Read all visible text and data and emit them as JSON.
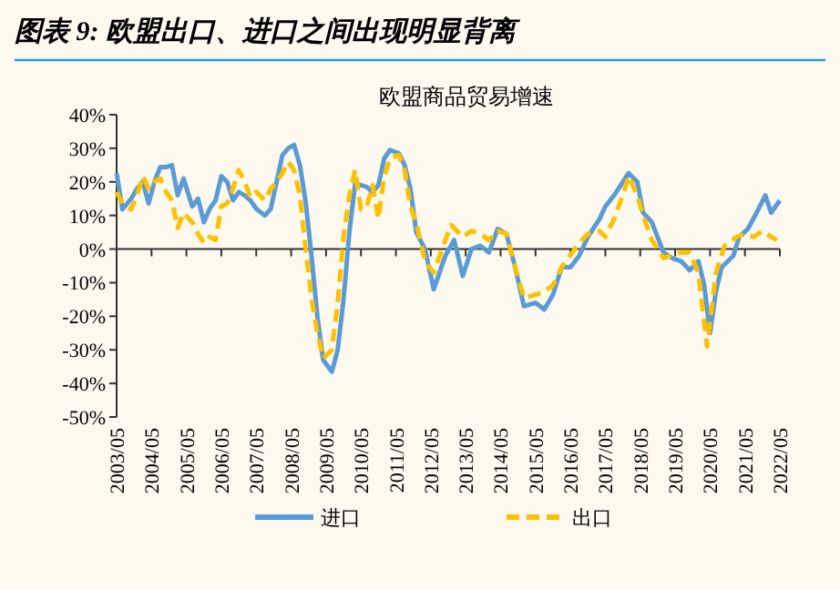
{
  "chart_data": {
    "type": "line",
    "title": "图表 9: 欧盟出口、进口之间出现明显背离",
    "subtitle": "欧盟商品贸易增速",
    "legend": "bottom",
    "xlim": [
      "2003-05",
      "2022-05"
    ],
    "xticks": [
      {
        "value": "2003-05",
        "label": "2003/05"
      },
      {
        "value": "2004-05",
        "label": "2004/05"
      },
      {
        "value": "2005-05",
        "label": "2005/05"
      },
      {
        "value": "2006-05",
        "label": "2006/05"
      },
      {
        "value": "2007-05",
        "label": "2007/05"
      },
      {
        "value": "2008-05",
        "label": "2008/05"
      },
      {
        "value": "2009-05",
        "label": "2009/05"
      },
      {
        "value": "2010-05",
        "label": "2010/05"
      },
      {
        "value": "2011-05",
        "label": "2011/05"
      },
      {
        "value": "2012-05",
        "label": "2012/05"
      },
      {
        "value": "2013-05",
        "label": "2013/05"
      },
      {
        "value": "2014-05",
        "label": "2014/05"
      },
      {
        "value": "2015-05",
        "label": "2015/05"
      },
      {
        "value": "2016-05",
        "label": "2016/05"
      },
      {
        "value": "2017-05",
        "label": "2017/05"
      },
      {
        "value": "2018-05",
        "label": "2018/05"
      },
      {
        "value": "2019-05",
        "label": "2019/05"
      },
      {
        "value": "2020-05",
        "label": "2020/05"
      },
      {
        "value": "2021-05",
        "label": "2021/05"
      },
      {
        "value": "2022-05",
        "label": "2022/05"
      }
    ],
    "ylim": [
      -50,
      40
    ],
    "yticks": [
      {
        "value": -50,
        "label": "-50%"
      },
      {
        "value": -40,
        "label": "-40%"
      },
      {
        "value": -30,
        "label": "-30%"
      },
      {
        "value": -20,
        "label": "-20%"
      },
      {
        "value": -10,
        "label": "-10%"
      },
      {
        "value": 0,
        "label": "0%"
      },
      {
        "value": 10,
        "label": "10%"
      },
      {
        "value": 20,
        "label": "20%"
      },
      {
        "value": 30,
        "label": "30%"
      },
      {
        "value": 40,
        "label": "40%"
      }
    ],
    "series": [
      {
        "name": "进口",
        "color": "#5b9bd5",
        "line_style": "solid",
        "x": [
          "2003-05",
          "2003-07",
          "2003-10",
          "2003-12",
          "2004-02",
          "2004-04",
          "2004-06",
          "2004-08",
          "2004-10",
          "2004-12",
          "2005-02",
          "2005-04",
          "2005-07",
          "2005-09",
          "2005-11",
          "2006-01",
          "2006-03",
          "2006-05",
          "2006-07",
          "2006-09",
          "2006-11",
          "2007-01",
          "2007-03",
          "2007-05",
          "2007-08",
          "2007-10",
          "2007-12",
          "2008-02",
          "2008-04",
          "2008-06",
          "2008-08",
          "2008-10",
          "2008-12",
          "2009-02",
          "2009-04",
          "2009-07",
          "2009-09",
          "2009-11",
          "2010-01",
          "2010-03",
          "2010-05",
          "2010-07",
          "2010-09",
          "2010-11",
          "2011-01",
          "2011-03",
          "2011-06",
          "2011-08",
          "2011-10",
          "2011-12",
          "2012-03",
          "2012-06",
          "2012-10",
          "2013-01",
          "2013-04",
          "2013-07",
          "2013-10",
          "2014-01",
          "2014-04",
          "2014-07",
          "2014-10",
          "2015-01",
          "2015-05",
          "2015-08",
          "2015-11",
          "2016-02",
          "2016-05",
          "2016-08",
          "2016-11",
          "2017-03",
          "2017-05",
          "2017-08",
          "2017-11",
          "2018-01",
          "2018-04",
          "2018-06",
          "2018-09",
          "2019-01",
          "2019-04",
          "2019-07",
          "2019-10",
          "2020-01",
          "2020-03",
          "2020-05",
          "2020-07",
          "2020-09",
          "2021-01",
          "2021-03",
          "2021-06",
          "2021-09",
          "2021-12",
          "2022-02",
          "2022-05"
        ],
        "values": [
          22.6,
          11.8,
          15,
          18,
          20,
          13.6,
          20,
          24.4,
          24.4,
          25,
          16,
          21,
          12.7,
          15,
          8,
          12,
          14.5,
          21.7,
          20,
          14.5,
          17,
          16,
          14.5,
          12,
          10,
          12,
          20,
          28,
          30,
          31,
          25,
          14,
          -2,
          -20,
          -33,
          -36.5,
          -30,
          -15,
          5,
          19.5,
          19,
          18.5,
          17,
          19,
          27,
          29.5,
          28.5,
          25,
          18,
          5,
          0,
          -12,
          -2,
          2.7,
          -8,
          0,
          1,
          -1,
          6,
          4.5,
          -5.4,
          -17,
          -16,
          -18,
          -13.6,
          -5.4,
          -5.4,
          -2,
          3.6,
          9,
          12.7,
          16,
          20,
          22.6,
          20,
          10.8,
          8,
          -1,
          -2.7,
          -3.6,
          -6.3,
          -3.6,
          -10.8,
          -25,
          -12.7,
          -5.4,
          -2,
          3.6,
          6,
          10.8,
          16,
          10.8,
          14.5
        ]
      },
      {
        "name": "出口",
        "color": "#ffc000",
        "line_style": "dashed",
        "x": [
          "2003-05",
          "2003-07",
          "2003-10",
          "2003-12",
          "2004-02",
          "2004-04",
          "2004-06",
          "2004-08",
          "2004-10",
          "2004-12",
          "2005-02",
          "2005-04",
          "2005-07",
          "2005-09",
          "2005-11",
          "2006-01",
          "2006-03",
          "2006-05",
          "2006-07",
          "2006-09",
          "2006-11",
          "2007-01",
          "2007-03",
          "2007-05",
          "2007-08",
          "2007-10",
          "2007-12",
          "2008-02",
          "2008-04",
          "2008-06",
          "2008-08",
          "2008-10",
          "2008-12",
          "2009-02",
          "2009-04",
          "2009-07",
          "2009-09",
          "2009-11",
          "2010-01",
          "2010-03",
          "2010-05",
          "2010-07",
          "2010-09",
          "2010-11",
          "2011-01",
          "2011-03",
          "2011-06",
          "2011-08",
          "2011-10",
          "2011-12",
          "2012-03",
          "2012-06",
          "2012-10",
          "2012-12",
          "2013-04",
          "2013-07",
          "2013-10",
          "2014-01",
          "2014-04",
          "2014-07",
          "2014-10",
          "2015-01",
          "2015-05",
          "2015-08",
          "2015-11",
          "2016-02",
          "2016-05",
          "2016-08",
          "2016-11",
          "2017-03",
          "2017-05",
          "2017-08",
          "2017-11",
          "2018-01",
          "2018-04",
          "2018-06",
          "2018-09",
          "2019-01",
          "2019-04",
          "2019-07",
          "2019-10",
          "2020-01",
          "2020-04",
          "2020-07",
          "2020-10",
          "2021-02",
          "2021-05",
          "2021-08",
          "2021-11",
          "2022-02",
          "2022-04"
        ],
        "values": [
          17,
          13.6,
          11.8,
          16,
          21.7,
          18,
          20,
          21,
          17,
          14.5,
          6.3,
          10.8,
          8,
          4.5,
          1.8,
          3.6,
          2.7,
          12.7,
          13.6,
          18,
          23.5,
          20,
          15.4,
          17,
          14.5,
          18,
          20,
          22.6,
          26,
          23.5,
          16,
          0,
          -14.5,
          -25,
          -32.5,
          -30,
          -16,
          3.6,
          16,
          23.5,
          11.8,
          12.7,
          19,
          9,
          21.7,
          27,
          28,
          23.5,
          12.7,
          8,
          -3.6,
          -7,
          2.7,
          7.2,
          3.6,
          5.4,
          4.5,
          2.7,
          5.4,
          4.5,
          -5.4,
          -14.5,
          -13.6,
          -12.7,
          -10.8,
          -5.4,
          -1.8,
          1.8,
          4.5,
          5.4,
          3.6,
          9,
          16,
          21.7,
          16,
          10,
          2.7,
          -2.7,
          -1.8,
          -1,
          -1,
          -7.2,
          -29,
          -7.2,
          1,
          3.6,
          4.5,
          3.6,
          5.4,
          3.6,
          2.7
        ]
      }
    ]
  }
}
